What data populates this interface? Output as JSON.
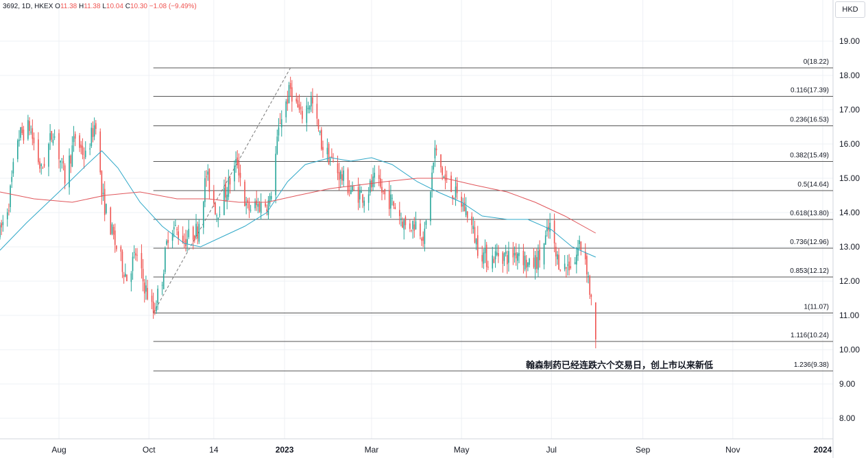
{
  "header": {
    "symbol": "3692, 1D, HKEX",
    "open_label": "O",
    "open": "11.38",
    "high_label": "H",
    "high": "11.38",
    "low_label": "L",
    "low": "10.04",
    "close_label": "C",
    "close": "10.30",
    "change": "−1.08 (−9.49%)"
  },
  "currency_button": "HKD",
  "annotation": "翰森制药已经连跌六个交易日，创上市以来新低",
  "colors": {
    "up": "#26a69a",
    "down": "#ef5350",
    "ma_short": "#2fa8c8",
    "ma_long": "#e0555a",
    "fib_line": "#555555",
    "grid": "#eef0f4"
  },
  "chart_data": {
    "type": "candlestick",
    "y_axis_ticks": [
      "8.00",
      "9.00",
      "10.00",
      "11.00",
      "12.00",
      "13.00",
      "14.00",
      "15.00",
      "16.00",
      "17.00",
      "18.00",
      "19.00"
    ],
    "x_axis_ticks": [
      "Aug",
      "Oct",
      "14",
      "2023",
      "Mar",
      "May",
      "Jul",
      "Sep",
      "Nov",
      "2024"
    ],
    "ylim": [
      7.4,
      20.2
    ],
    "grid": true,
    "fibonacci": {
      "start": {
        "date": "2022-10-04",
        "price": 11.07
      },
      "end": {
        "date": "2023-01-05",
        "price": 18.22
      },
      "levels": [
        {
          "label": "0(18.22)",
          "price": 18.22
        },
        {
          "label": "0.116(17.39)",
          "price": 17.39
        },
        {
          "label": "0.236(16.53)",
          "price": 16.53
        },
        {
          "label": "0.382(15.49)",
          "price": 15.49
        },
        {
          "label": "0.5(14.64)",
          "price": 14.64
        },
        {
          "label": "0.618(13.80)",
          "price": 13.8
        },
        {
          "label": "0.736(12.96)",
          "price": 12.96
        },
        {
          "label": "0.853(12.12)",
          "price": 12.12
        },
        {
          "label": "1(11.07)",
          "price": 11.07
        },
        {
          "label": "1.116(10.24)",
          "price": 10.24
        },
        {
          "label": "1.236(9.38)",
          "price": 9.38
        }
      ]
    },
    "price_path": [
      [
        "2022-06-22",
        13.4
      ],
      [
        "2022-06-28",
        14.3
      ],
      [
        "2022-07-04",
        16.2
      ],
      [
        "2022-07-12",
        16.5
      ],
      [
        "2022-07-20",
        15.2
      ],
      [
        "2022-07-28",
        16.4
      ],
      [
        "2022-08-05",
        15.0
      ],
      [
        "2022-08-12",
        16.2
      ],
      [
        "2022-08-19",
        15.6
      ],
      [
        "2022-08-26",
        16.7
      ],
      [
        "2022-08-30",
        14.5
      ],
      [
        "2022-09-08",
        13.1
      ],
      [
        "2022-09-16",
        12.1
      ],
      [
        "2022-09-22",
        12.8
      ],
      [
        "2022-09-27",
        12.0
      ],
      [
        "2022-10-04",
        11.1
      ],
      [
        "2022-10-10",
        12.1
      ],
      [
        "2022-10-15",
        13.7
      ],
      [
        "2022-10-25",
        13.2
      ],
      [
        "2022-11-03",
        13.5
      ],
      [
        "2022-11-09",
        15.1
      ],
      [
        "2022-11-16",
        14.0
      ],
      [
        "2022-11-23",
        14.7
      ],
      [
        "2022-11-30",
        15.5
      ],
      [
        "2022-12-06",
        14.1
      ],
      [
        "2022-12-14",
        14.2
      ],
      [
        "2022-12-22",
        14.3
      ],
      [
        "2022-12-29",
        16.7
      ],
      [
        "2023-01-05",
        17.6
      ],
      [
        "2023-01-12",
        16.8
      ],
      [
        "2023-01-19",
        17.3
      ],
      [
        "2023-01-26",
        16.0
      ],
      [
        "2023-02-06",
        15.2
      ],
      [
        "2023-02-16",
        14.6
      ],
      [
        "2023-02-24",
        14.5
      ],
      [
        "2023-03-03",
        14.9
      ],
      [
        "2023-03-10",
        14.5
      ],
      [
        "2023-03-17",
        14.2
      ],
      [
        "2023-03-24",
        13.6
      ],
      [
        "2023-03-31",
        13.7
      ],
      [
        "2023-04-06",
        13.3
      ],
      [
        "2023-04-13",
        15.8
      ],
      [
        "2023-04-20",
        14.9
      ],
      [
        "2023-04-27",
        14.5
      ],
      [
        "2023-05-05",
        14.0
      ],
      [
        "2023-05-12",
        13.0
      ],
      [
        "2023-05-19",
        12.6
      ],
      [
        "2023-05-26",
        12.8
      ],
      [
        "2023-06-02",
        12.7
      ],
      [
        "2023-06-09",
        12.9
      ],
      [
        "2023-06-16",
        12.4
      ],
      [
        "2023-06-23",
        12.7
      ],
      [
        "2023-06-30",
        13.6
      ],
      [
        "2023-07-04",
        12.7
      ],
      [
        "2023-07-10",
        12.4
      ],
      [
        "2023-07-17",
        12.6
      ],
      [
        "2023-07-20",
        13.1
      ],
      [
        "2023-07-24",
        12.7
      ],
      [
        "2023-07-26",
        12.1
      ],
      [
        "2023-07-27",
        11.7
      ],
      [
        "2023-07-28",
        11.4
      ],
      [
        "2023-07-31",
        10.3
      ]
    ],
    "ma_short_path": [
      [
        "2022-06-22",
        12.9
      ],
      [
        "2022-07-10",
        13.7
      ],
      [
        "2022-08-01",
        14.6
      ],
      [
        "2022-08-20",
        15.4
      ],
      [
        "2022-08-30",
        15.8
      ],
      [
        "2022-09-10",
        15.3
      ],
      [
        "2022-09-25",
        14.3
      ],
      [
        "2022-10-10",
        13.6
      ],
      [
        "2022-10-25",
        13.1
      ],
      [
        "2022-11-05",
        13.0
      ],
      [
        "2022-11-20",
        13.3
      ],
      [
        "2022-12-05",
        13.6
      ],
      [
        "2022-12-20",
        14.0
      ],
      [
        "2023-01-03",
        14.9
      ],
      [
        "2023-01-15",
        15.4
      ],
      [
        "2023-02-01",
        15.6
      ],
      [
        "2023-02-15",
        15.5
      ],
      [
        "2023-03-01",
        15.6
      ],
      [
        "2023-03-15",
        15.4
      ],
      [
        "2023-04-01",
        14.9
      ],
      [
        "2023-04-15",
        14.6
      ],
      [
        "2023-05-01",
        14.3
      ],
      [
        "2023-05-15",
        13.9
      ],
      [
        "2023-06-01",
        13.8
      ],
      [
        "2023-06-15",
        13.8
      ],
      [
        "2023-07-01",
        13.5
      ],
      [
        "2023-07-15",
        13.0
      ],
      [
        "2023-07-31",
        12.7
      ]
    ],
    "ma_long_path": [
      [
        "2022-06-22",
        14.6
      ],
      [
        "2022-07-15",
        14.4
      ],
      [
        "2022-08-10",
        14.3
      ],
      [
        "2022-09-01",
        14.5
      ],
      [
        "2022-09-25",
        14.6
      ],
      [
        "2022-10-20",
        14.4
      ],
      [
        "2022-11-10",
        14.4
      ],
      [
        "2022-12-01",
        14.3
      ],
      [
        "2022-12-20",
        14.3
      ],
      [
        "2023-01-10",
        14.5
      ],
      [
        "2023-02-01",
        14.7
      ],
      [
        "2023-02-20",
        14.8
      ],
      [
        "2023-03-10",
        14.9
      ],
      [
        "2023-04-01",
        15.0
      ],
      [
        "2023-04-20",
        15.0
      ],
      [
        "2023-05-10",
        14.8
      ],
      [
        "2023-06-01",
        14.6
      ],
      [
        "2023-06-20",
        14.3
      ],
      [
        "2023-07-10",
        13.9
      ],
      [
        "2023-07-31",
        13.4
      ]
    ]
  }
}
